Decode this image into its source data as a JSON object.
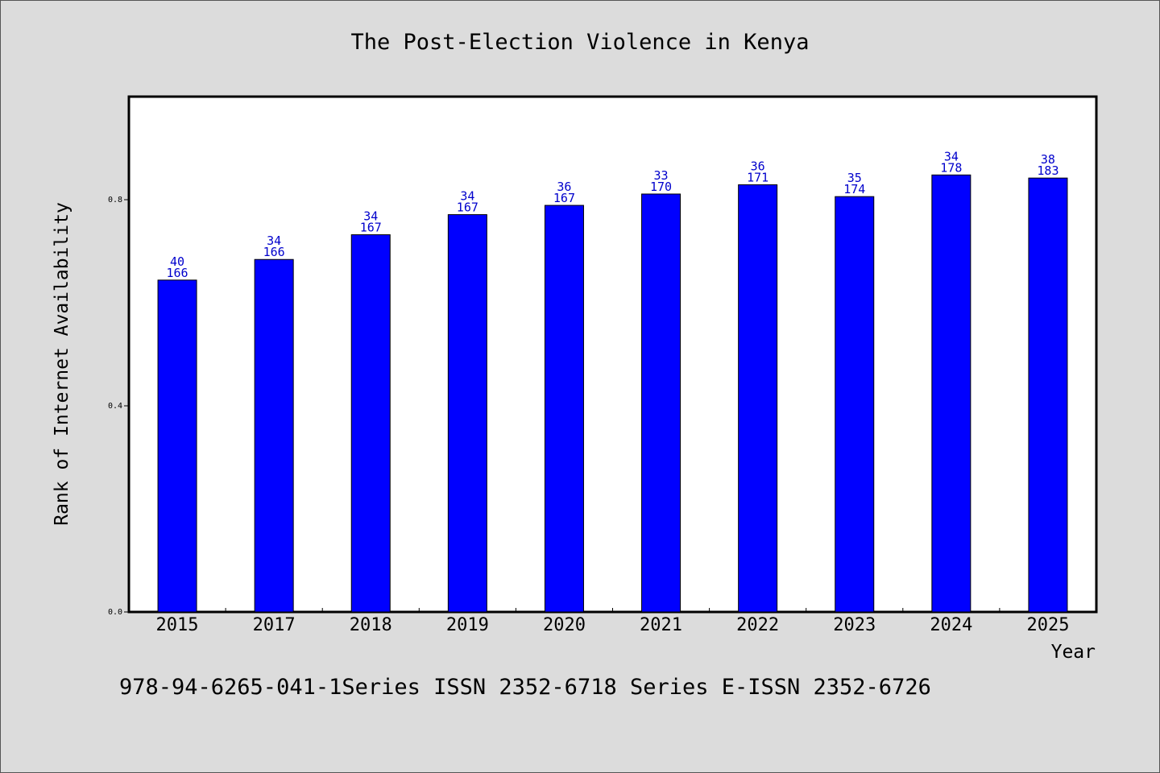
{
  "chart_data": {
    "type": "bar",
    "title": "The Post-Election Violence in Kenya",
    "xlabel": "Year",
    "ylabel": "Rank of Internet Availability",
    "categories": [
      "2015",
      "2017",
      "2018",
      "2019",
      "2020",
      "2021",
      "2022",
      "2023",
      "2024",
      "2025"
    ],
    "series": [
      {
        "values": [
          0.644,
          0.684,
          0.732,
          0.771,
          0.789,
          0.811,
          0.829,
          0.806,
          0.848,
          0.842
        ],
        "color": "#0000ff"
      }
    ],
    "data_labels": [
      [
        "40",
        "166"
      ],
      [
        "34",
        "166"
      ],
      [
        "34",
        "167"
      ],
      [
        "34",
        "167"
      ],
      [
        "36",
        "167"
      ],
      [
        "33",
        "170"
      ],
      [
        "36",
        "171"
      ],
      [
        "35",
        "174"
      ],
      [
        "34",
        "178"
      ],
      [
        "38",
        "183"
      ]
    ],
    "yticks": [
      "0.0",
      "0.4",
      "0.8"
    ],
    "ylim": [
      0,
      1.0
    ],
    "grid": false,
    "legend": "none"
  },
  "footer": {
    "text": "978-94-6265-041-1Series ISSN 2352-6718 Series E-ISSN 2352-6726"
  }
}
